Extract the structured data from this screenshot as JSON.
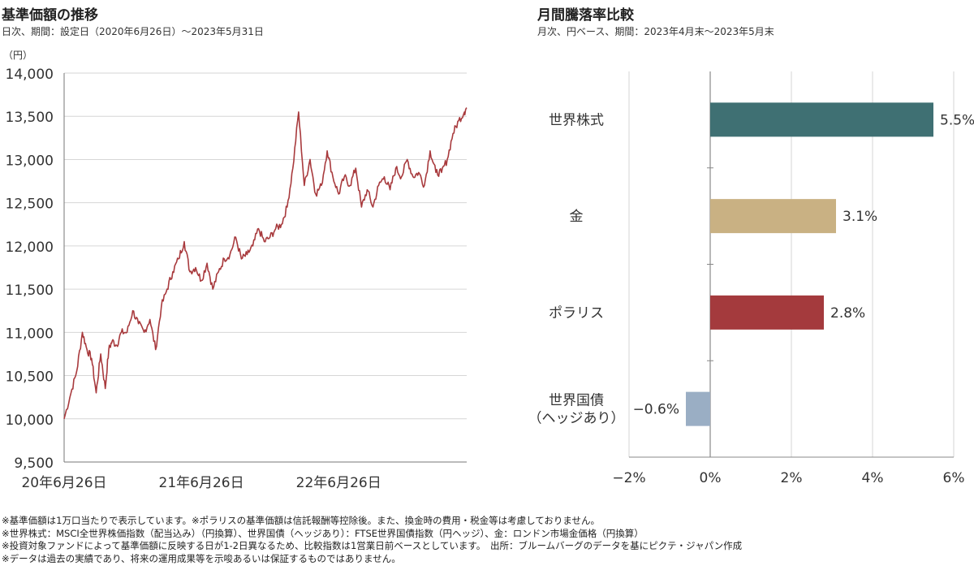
{
  "left_panel": {
    "title": "基準価額の推移",
    "subtitle": "日次、期間：設定日（2020年6月26日）～2023年5月31日"
  },
  "right_panel": {
    "title": "月間騰落率比較",
    "subtitle": "月次、円ベース、期間：2023年4月末～2023年5月末"
  },
  "notes": [
    "※基準価額は1万口当たりで表示しています。※ポラリスの基準価額は信託報酬等控除後。また、換金時の費用・税金等は考慮しておりません。",
    "※世界株式：MSCI全世界株価指数（配当込み）（円換算）、世界国債（ヘッジあり）：FTSE世界国債指数（円ヘッジ）、金：ロンドン市場金価格（円換算）",
    "※投資対象ファンドによって基準価額に反映する日が1-2日異なるため、比較指数は1営業日前ベースとしています。　出所：ブルームバーグのデータを基にピクテ・ジャパン作成",
    "※データは過去の実績であり、将来の運用成果等を示唆あるいは保証するものではありません。"
  ],
  "chart_data": [
    {
      "type": "line",
      "title": "基準価額の推移",
      "ylabel": "（円）",
      "ylim": [
        9500,
        14000
      ],
      "yticks": [
        9500,
        10000,
        10500,
        11000,
        11500,
        12000,
        12500,
        13000,
        13500,
        14000
      ],
      "ytick_labels": [
        "9,500",
        "10,000",
        "10,500",
        "11,000",
        "11,500",
        "12,000",
        "12,500",
        "13,000",
        "13,500",
        "14,000"
      ],
      "x_tick_labels": [
        "20年6月26日",
        "21年6月26日",
        "22年6月26日"
      ],
      "x_tick_months": [
        0,
        12,
        24
      ],
      "x_range_months": [
        0,
        35.2
      ],
      "line_color": "#a83a3d",
      "series": [
        {
          "name": "基準価額",
          "x_months": [
            0,
            0.6,
            1.1,
            1.6,
            2.0,
            2.4,
            2.8,
            3.2,
            3.6,
            3.9,
            4.2,
            4.6,
            5.0,
            5.5,
            6.0,
            6.5,
            7.0,
            7.5,
            8.0,
            8.5,
            9.0,
            9.5,
            10.0,
            10.5,
            11.0,
            11.5,
            12.0,
            12.5,
            13.0,
            13.5,
            14.0,
            14.5,
            15.0,
            15.5,
            16.0,
            16.5,
            17.0,
            17.5,
            18.0,
            18.5,
            19.0,
            19.5,
            20.0,
            20.5,
            21.0,
            21.5,
            22.0,
            22.5,
            23.0,
            23.5,
            24.0,
            24.5,
            25.0,
            25.5,
            26.0,
            26.5,
            27.0,
            27.5,
            28.0,
            28.5,
            29.0,
            29.5,
            30.0,
            30.5,
            31.0,
            31.5,
            32.0,
            32.5,
            33.0,
            33.5,
            34.0,
            34.5,
            35.0,
            35.2
          ],
          "values": [
            10000,
            10300,
            10550,
            11000,
            10800,
            10700,
            10300,
            10750,
            10350,
            10800,
            10900,
            10850,
            11000,
            11000,
            11250,
            11100,
            11000,
            11150,
            10800,
            11300,
            11500,
            11700,
            11850,
            12050,
            11700,
            11750,
            11600,
            11800,
            11500,
            11700,
            11850,
            11900,
            12100,
            11850,
            11900,
            12000,
            12200,
            12050,
            12100,
            12200,
            12250,
            12450,
            12900,
            13550,
            12700,
            13000,
            12600,
            12700,
            13100,
            12800,
            12600,
            12800,
            12700,
            12900,
            12450,
            12650,
            12450,
            12700,
            12800,
            12650,
            12900,
            12800,
            13000,
            12800,
            12850,
            12700,
            13100,
            12850,
            12850,
            13000,
            13300,
            13450,
            13550,
            13600
          ]
        }
      ]
    },
    {
      "type": "bar",
      "orientation": "horizontal",
      "title": "月間騰落率比較",
      "categories": [
        "世界株式",
        "金",
        "ポラリス",
        "世界国債\n（ヘッジあり）"
      ],
      "values": [
        5.5,
        3.1,
        2.8,
        -0.6
      ],
      "value_labels": [
        "5.5%",
        "3.1%",
        "2.8%",
        "−0.6%"
      ],
      "colors": [
        "#3f7073",
        "#c9b183",
        "#a43a3d",
        "#9aaec4"
      ],
      "xlim": [
        -2,
        6
      ],
      "xticks": [
        -2,
        0,
        2,
        4,
        6
      ],
      "xtick_labels": [
        "−2%",
        "0%",
        "2%",
        "4%",
        "6%"
      ],
      "grid": "vertical"
    }
  ]
}
